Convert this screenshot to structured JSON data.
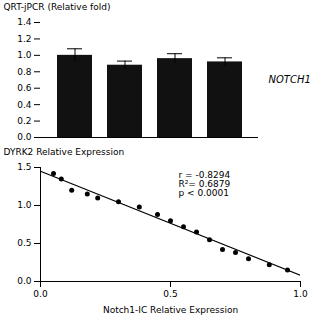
{
  "chart_data": [
    {
      "type": "bar",
      "categories": [
        null,
        null,
        null,
        null
      ],
      "values": [
        1.0,
        0.88,
        0.96,
        0.92
      ],
      "errors": [
        0.08,
        0.05,
        0.06,
        0.05
      ],
      "ylabel": "QRT-jPCR (Relative fold)",
      "ylim": [
        0.0,
        1.4
      ],
      "yticks": [
        {
          "value": 0.0,
          "label": "0.0"
        },
        0.2,
        0.4,
        0.6,
        0.8,
        {
          "value": 1.0,
          "label": "1.0"
        },
        1.2,
        1.4
      ],
      "annotation": "NOTCH1",
      "color": "#111111",
      "tick_labels": "y"
    },
    {
      "type": "scatter",
      "x": [
        0.05,
        0.08,
        0.12,
        0.18,
        0.22,
        0.3,
        0.38,
        0.45,
        0.5,
        0.55,
        0.6,
        0.65,
        0.7,
        0.75,
        0.8,
        0.88,
        0.95
      ],
      "values": [
        1.42,
        1.35,
        1.2,
        1.15,
        1.1,
        1.05,
        0.98,
        0.88,
        0.8,
        0.72,
        0.65,
        0.55,
        0.42,
        0.38,
        0.3,
        0.22,
        0.15
      ],
      "color": "black",
      "fit_line": {
        "x": [
          0.0,
          1.0
        ],
        "y": [
          1.45,
          0.08
        ],
        "color": "black"
      },
      "xlabel": "Notch1-IC Relative Expression",
      "ylabel": "DYRK2 Relative Expression",
      "xlim": [
        0.0,
        1.0
      ],
      "ylim": [
        0.0,
        1.5
      ],
      "xticks": [
        {
          "value": 0.0,
          "label": "0.0"
        },
        0.5,
        {
          "value": 1.0,
          "label": "1.0"
        }
      ],
      "yticks": [
        {
          "value": 0.0,
          "label": "0.0"
        },
        0.5,
        {
          "value": 1.0,
          "label": "1.0"
        },
        1.5
      ],
      "annotation": "r = -0.8294\nR²= 0.6879\np < 0.0001"
    }
  ]
}
